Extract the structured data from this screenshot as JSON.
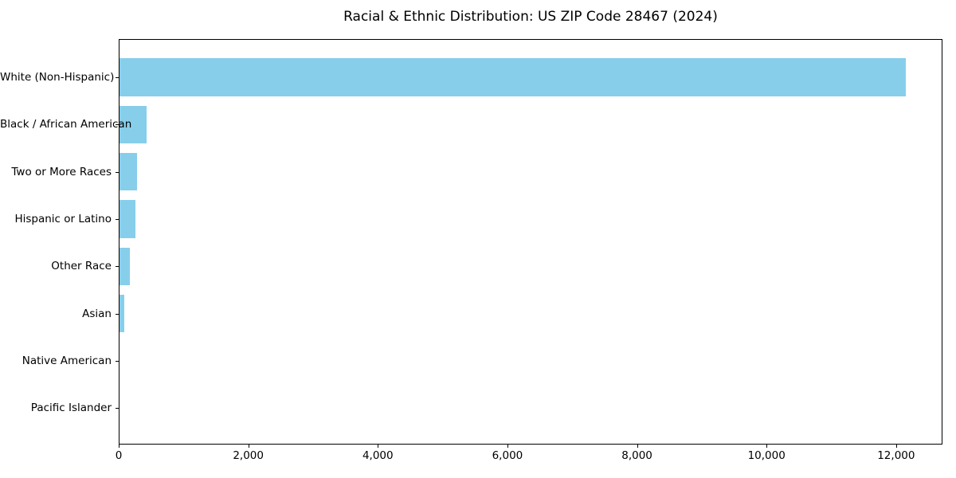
{
  "figure": {
    "title": "Racial & Ethnic Distribution: US ZIP Code 28467 (2024)"
  },
  "chart_data": {
    "type": "bar",
    "orientation": "horizontal",
    "title": "Racial & Ethnic Distribution: US ZIP Code 28467 (2024)",
    "categories": [
      "White (Non-Hispanic)",
      "Black / African American",
      "Two or More Races",
      "Hispanic or Latino",
      "Other Race",
      "Asian",
      "Native American",
      "Pacific Islander"
    ],
    "values": [
      12140,
      420,
      265,
      240,
      160,
      70,
      0,
      0
    ],
    "xlabel": "",
    "ylabel": "",
    "xlim": [
      0,
      12715
    ],
    "x_ticks": [
      0,
      2000,
      4000,
      6000,
      8000,
      10000,
      12000
    ],
    "x_tick_labels": [
      "0",
      "2,000",
      "4,000",
      "6,000",
      "8,000",
      "10,000",
      "12,000"
    ],
    "grid": false,
    "legend": null,
    "sort_order": "descending",
    "bar_color": "#87CEEB",
    "background_color": "#FFFFFF",
    "text_color": "#000000"
  }
}
